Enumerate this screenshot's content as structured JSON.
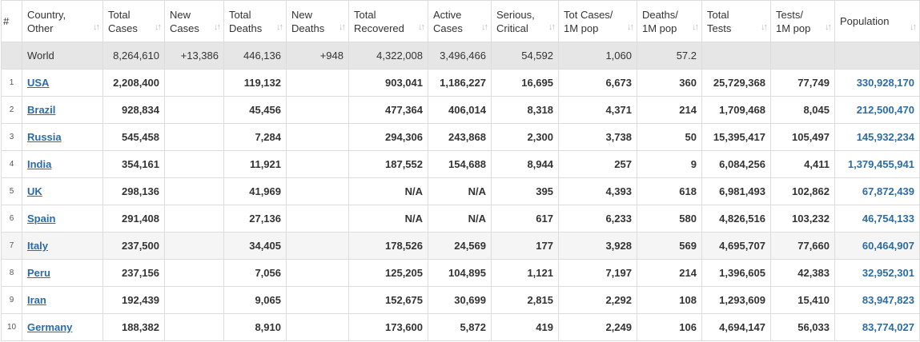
{
  "table": {
    "headers": [
      [
        "#"
      ],
      [
        "Country,",
        "Other"
      ],
      [
        "Total",
        "Cases"
      ],
      [
        "New",
        "Cases"
      ],
      [
        "Total",
        "Deaths"
      ],
      [
        "New",
        "Deaths"
      ],
      [
        "Total",
        "Recovered"
      ],
      [
        "Active",
        "Cases"
      ],
      [
        "Serious,",
        "Critical"
      ],
      [
        "Tot Cases/",
        "1M pop"
      ],
      [
        "Deaths/",
        "1M pop"
      ],
      [
        "Total",
        "Tests"
      ],
      [
        "Tests/",
        "1M pop"
      ],
      [
        "Population"
      ]
    ],
    "total_row": [
      null,
      "World",
      "8,264,610",
      "+13,386",
      "446,136",
      "+948",
      "4,322,008",
      "3,496,466",
      "54,592",
      "1,060",
      "57.2",
      null,
      null,
      null
    ],
    "rows": [
      [
        "1",
        "USA",
        "2,208,400",
        null,
        "119,132",
        null,
        "903,041",
        "1,186,227",
        "16,695",
        "6,673",
        "360",
        "25,729,368",
        "77,749",
        "330,928,170"
      ],
      [
        "2",
        "Brazil",
        "928,834",
        null,
        "45,456",
        null,
        "477,364",
        "406,014",
        "8,318",
        "4,371",
        "214",
        "1,709,468",
        "8,045",
        "212,500,470"
      ],
      [
        "3",
        "Russia",
        "545,458",
        null,
        "7,284",
        null,
        "294,306",
        "243,868",
        "2,300",
        "3,738",
        "50",
        "15,395,417",
        "105,497",
        "145,932,234"
      ],
      [
        "4",
        "India",
        "354,161",
        null,
        "11,921",
        null,
        "187,552",
        "154,688",
        "8,944",
        "257",
        "9",
        "6,084,256",
        "4,411",
        "1,379,455,941"
      ],
      [
        "5",
        "UK",
        "298,136",
        null,
        "41,969",
        null,
        "N/A",
        "N/A",
        "395",
        "4,393",
        "618",
        "6,981,493",
        "102,862",
        "67,872,439"
      ],
      [
        "6",
        "Spain",
        "291,408",
        null,
        "27,136",
        null,
        "N/A",
        "N/A",
        "617",
        "6,233",
        "580",
        "4,826,516",
        "103,232",
        "46,754,133"
      ],
      [
        "7",
        "Italy",
        "237,500",
        null,
        "34,405",
        null,
        "178,526",
        "24,569",
        "177",
        "3,928",
        "569",
        "4,695,707",
        "77,660",
        "60,464,907"
      ],
      [
        "8",
        "Peru",
        "237,156",
        null,
        "7,056",
        null,
        "125,205",
        "104,895",
        "1,121",
        "7,197",
        "214",
        "1,396,605",
        "42,383",
        "32,952,301"
      ],
      [
        "9",
        "Iran",
        "192,439",
        null,
        "9,065",
        null,
        "152,675",
        "30,699",
        "2,815",
        "2,292",
        "108",
        "1,293,609",
        "15,410",
        "83,947,823"
      ],
      [
        "10",
        "Germany",
        "188,382",
        null,
        "8,910",
        null,
        "173,600",
        "5,872",
        "419",
        "2,249",
        "106",
        "4,694,147",
        "56,033",
        "83,774,027"
      ]
    ]
  }
}
